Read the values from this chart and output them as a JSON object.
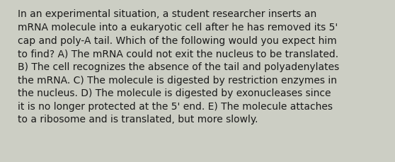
{
  "text": "In an experimental situation, a student researcher inserts an mRNA molecule into a eukaryotic cell after he has removed its 5' cap and poly-A tail. Which of the following would you expect him to find? A) The mRNA could not exit the nucleus to be translated. B) The cell recognizes the absence of the tail and polyadenylates the mRNA. C) The molecule is digested by restriction enzymes in the nucleus. D) The molecule is digested by exonucleases since it is no longer protected at the 5' end. E) The molecule attaches to a ribosome and is translated, but more slowly.",
  "lines": [
    "In an experimental situation, a student researcher inserts an",
    "mRNA molecule into a eukaryotic cell after he has removed its 5'",
    "cap and poly-A tail. Which of the following would you expect him",
    "to find? A) The mRNA could not exit the nucleus to be translated.",
    "B) The cell recognizes the absence of the tail and polyadenylates",
    "the mRNA. C) The molecule is digested by restriction enzymes in",
    "the nucleus. D) The molecule is digested by exonucleases since",
    "it is no longer protected at the 5' end. E) The molecule attaches",
    "to a ribosome and is translated, but more slowly."
  ],
  "background_color": "#cccec4",
  "text_color": "#1a1a1a",
  "font_size": 10.0,
  "fig_width": 5.58,
  "fig_height": 2.3,
  "dpi": 100
}
